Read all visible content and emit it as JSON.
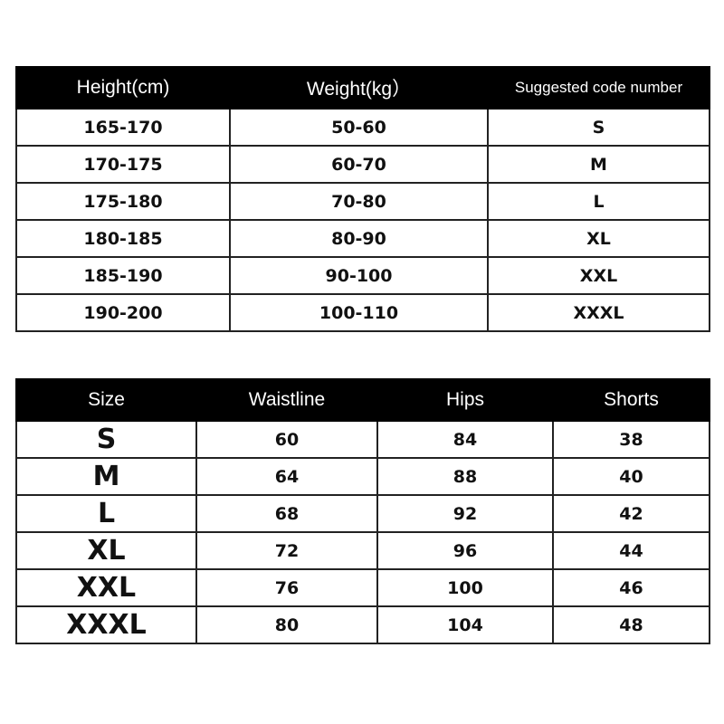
{
  "height_weight_table": {
    "headers": [
      "Height(cm)",
      "Weight(kg）",
      "Suggested code number"
    ],
    "rows": [
      [
        "165-170",
        "50-60",
        "S"
      ],
      [
        "170-175",
        "60-70",
        "M"
      ],
      [
        "175-180",
        "70-80",
        "L"
      ],
      [
        "180-185",
        "80-90",
        "XL"
      ],
      [
        "185-190",
        "90-100",
        "XXL"
      ],
      [
        "190-200",
        "100-110",
        "XXXL"
      ]
    ]
  },
  "measurement_table": {
    "headers": [
      "Size",
      "Waistline",
      "Hips",
      "Shorts"
    ],
    "rows": [
      [
        "S",
        "60",
        "84",
        "38"
      ],
      [
        "M",
        "64",
        "88",
        "40"
      ],
      [
        "L",
        "68",
        "92",
        "42"
      ],
      [
        "XL",
        "72",
        "96",
        "44"
      ],
      [
        "XXL",
        "76",
        "100",
        "46"
      ],
      [
        "XXXL",
        "80",
        "104",
        "48"
      ]
    ]
  },
  "colors": {
    "header_bg": "#000000",
    "header_text": "#ffffff",
    "border": "#222222"
  }
}
